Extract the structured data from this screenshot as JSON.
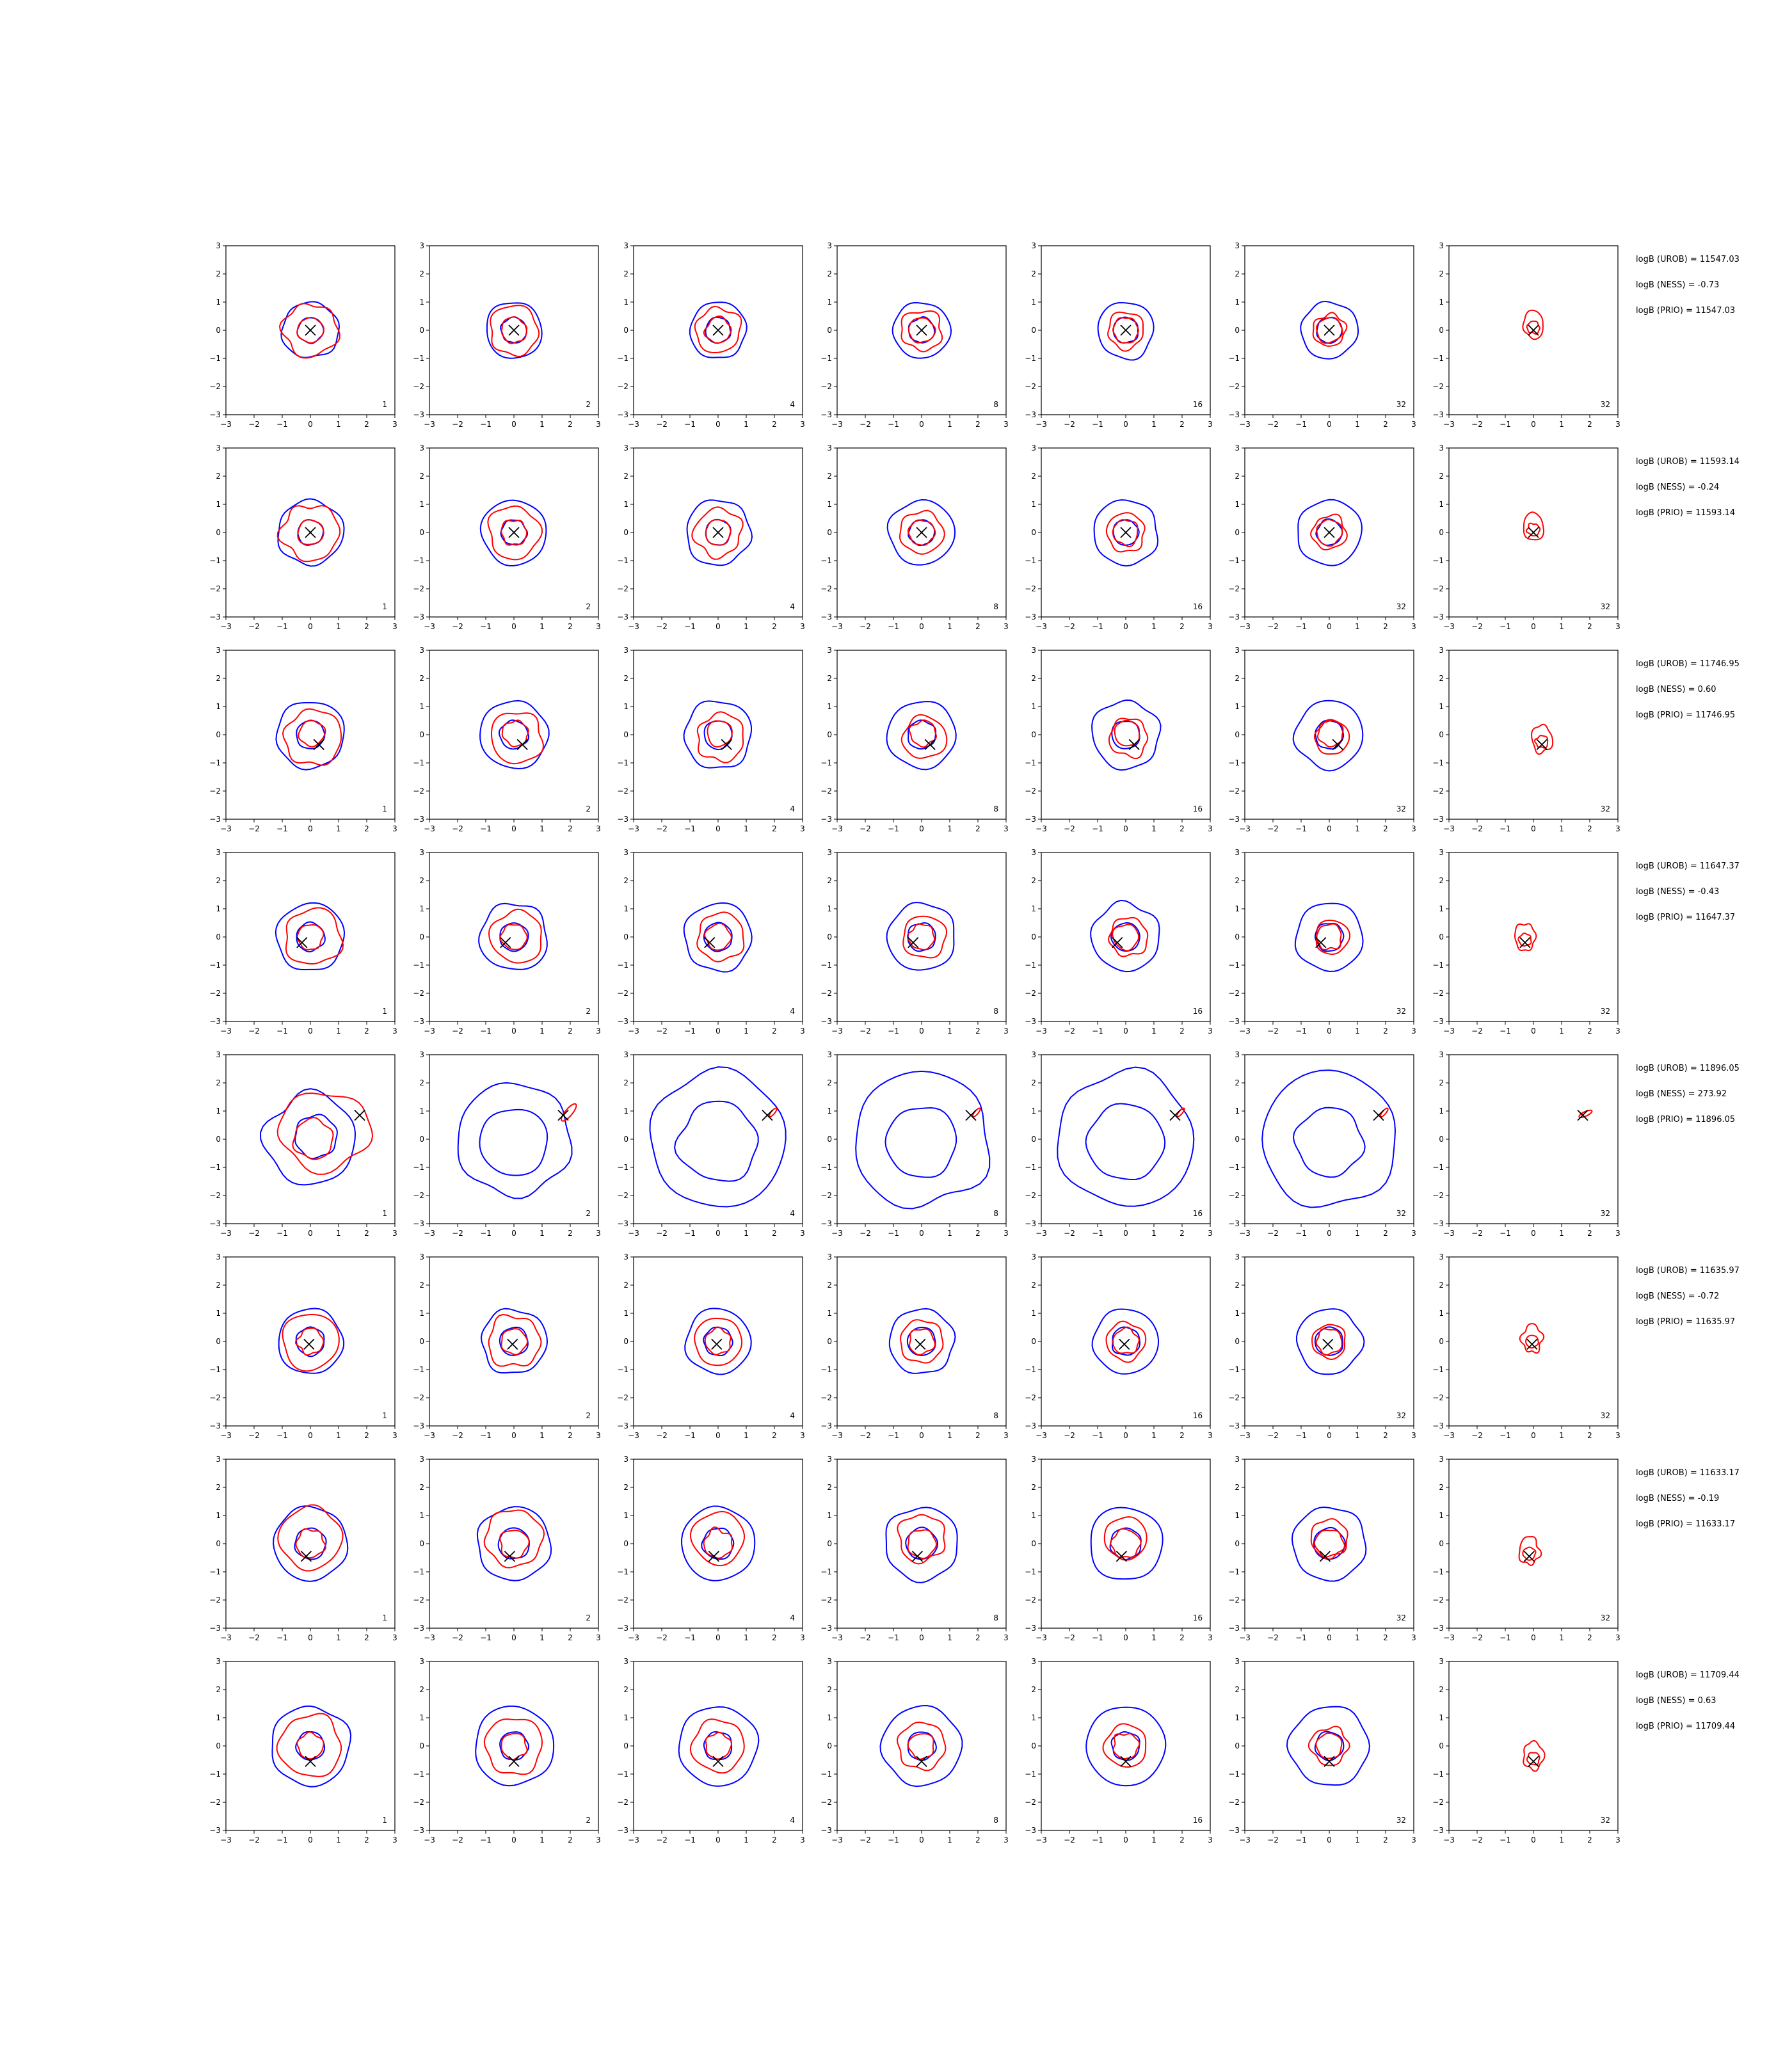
{
  "colors": {
    "blue_contour": "#0000ff",
    "red_contour": "#ff0000",
    "marker": "#000000",
    "axes": "#000000"
  },
  "chart_data": {
    "type": "contour-grid",
    "xlim": [
      -3,
      3
    ],
    "ylim": [
      -3,
      3
    ],
    "x_ticks": [
      "−3",
      "−2",
      "−1",
      "0",
      "1",
      "2",
      "3"
    ],
    "y_ticks": [
      "3",
      "2",
      "1",
      "0",
      "−1",
      "−2",
      "−3"
    ],
    "column_labels": [
      "1",
      "2",
      "4",
      "8",
      "16",
      "32",
      "32"
    ],
    "rows": [
      {
        "marker": [
          0.0,
          0.0
        ],
        "stats": [
          "logB (UROB) = 11547.03",
          "logB (NESS) = -0.73",
          "logB (PRIO) = 11547.03"
        ]
      },
      {
        "marker": [
          0.0,
          0.0
        ],
        "stats": [
          "logB (UROB) = 11593.14",
          "logB (NESS) = -0.24",
          "logB (PRIO) = 11593.14"
        ]
      },
      {
        "marker": [
          0.3,
          -0.35
        ],
        "stats": [
          "logB (UROB) = 11746.95",
          "logB (NESS) = 0.60",
          "logB (PRIO) = 11746.95"
        ]
      },
      {
        "marker": [
          -0.3,
          -0.2
        ],
        "stats": [
          "logB (UROB) = 11647.37",
          "logB (NESS) = -0.43",
          "logB (PRIO) = 11647.37"
        ]
      },
      {
        "marker": [
          1.75,
          0.85
        ],
        "stats": [
          "logB (UROB) = 11896.05",
          "logB (NESS) = 273.92",
          "logB (PRIO) = 11896.05"
        ]
      },
      {
        "marker": [
          -0.05,
          -0.1
        ],
        "stats": [
          "logB (UROB) = 11635.97",
          "logB (NESS) = -0.72",
          "logB (PRIO) = 11635.97"
        ]
      },
      {
        "marker": [
          -0.15,
          -0.45
        ],
        "stats": [
          "logB (UROB) = 11633.17",
          "logB (NESS) = -0.19",
          "logB (PRIO) = 11633.17"
        ]
      },
      {
        "marker": [
          0.0,
          -0.55
        ],
        "stats": [
          "logB (UROB) = 11709.44",
          "logB (NESS) = 0.63",
          "logB (PRIO) = 11709.44"
        ]
      }
    ]
  }
}
